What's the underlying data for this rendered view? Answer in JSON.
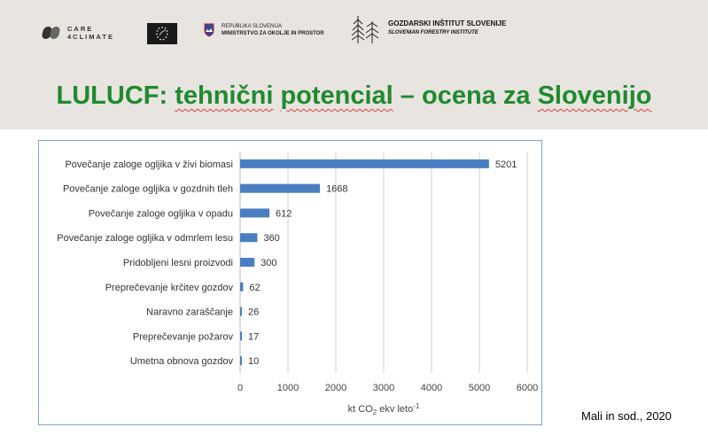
{
  "header": {
    "logo_care4climate": "CARE\n4CLIMATE",
    "logo_slovenia_line1": "REPUBLIKA SLOVENIJA",
    "logo_slovenia_line2": "MINISTRSTVO ZA OKOLJE IN PROSTOR",
    "logo_gis_line1": "GOZDARSKI INŠTITUT SLOVENIJE",
    "logo_gis_line2": "SLOVENIAN FORESTRY INSTITUTE"
  },
  "slide_title": {
    "part1": "LULUCF: ",
    "part2": "tehnični",
    "part3": " ",
    "part4": "potencial",
    "part5": " – ocena za ",
    "part6": "Slovenijo"
  },
  "credit": "Mali in sod., 2020",
  "colors": {
    "bar": "#4a7ec2",
    "title": "#1f8a2e"
  },
  "chart_data": {
    "type": "bar",
    "orientation": "horizontal",
    "categories": [
      "Povečanje zaloge ogljika v živi biomasi",
      "Povečanje zaloge ogljika v gozdnih tleh",
      "Povečanje zaloge ogljika v opadu",
      "Povečanje zaloge ogljika v odmrlem lesu",
      "Pridobljeni lesni proizvodi",
      "Preprečevanje krčitev gozdov",
      "Naravno zaraščanje",
      "Preprečevanje požarov",
      "Umetna obnova gozdov"
    ],
    "values": [
      5201,
      1668,
      612,
      360,
      300,
      62,
      26,
      17,
      10
    ],
    "xlabel_main": "kt CO",
    "xlabel_sub": "2",
    "xlabel_rest": " ekv leto",
    "xlabel_sup": "-1",
    "xlim": [
      0,
      6000
    ],
    "xticks": [
      0,
      1000,
      2000,
      3000,
      4000,
      5000,
      6000
    ],
    "grid": true
  }
}
